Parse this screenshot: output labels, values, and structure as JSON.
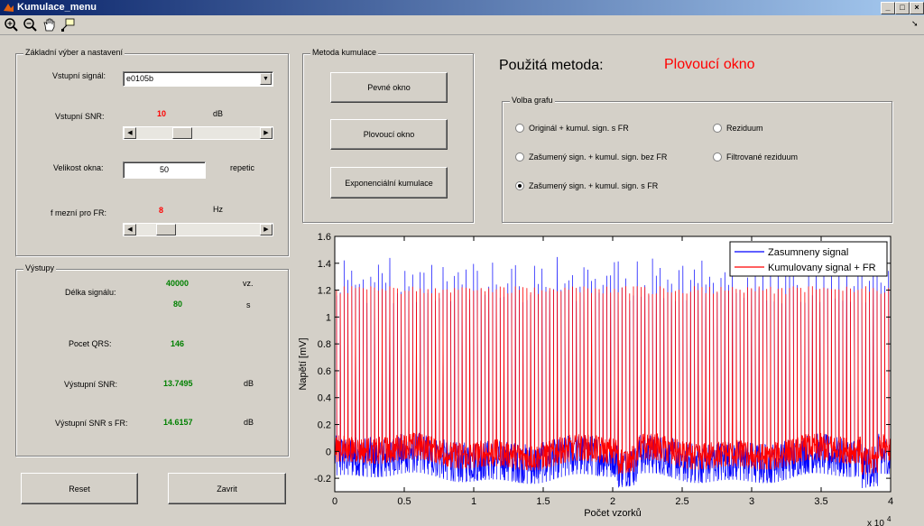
{
  "window": {
    "title": "Kumulace_menu",
    "minimize": "_",
    "maximize": "□",
    "close": "×"
  },
  "toolbar": {
    "icons": [
      "zoom-in-icon",
      "zoom-out-icon",
      "pan-hand-icon",
      "data-cursor-icon"
    ],
    "dock_arrow": "➘"
  },
  "settings": {
    "group_title": "Základní výber a nastavení",
    "input_signal_label": "Vstupní signál:",
    "input_signal_value": "e0105b",
    "snr_label": "Vstupní SNR:",
    "snr_value": "10",
    "snr_unit": "dB",
    "snr_slider_fraction": 0.35,
    "window_label": "Velikost okna:",
    "window_value": "50",
    "window_unit": "repetic",
    "cutoff_label": "f mezní pro FR:",
    "cutoff_value": "8",
    "cutoff_unit": "Hz",
    "cutoff_slider_fraction": 0.2
  },
  "outputs": {
    "group_title": "Výstupy",
    "length_label": "Délka signálu:",
    "length_samples": "40000",
    "length_samples_unit": "vz.",
    "length_seconds": "80",
    "length_seconds_unit": "s",
    "qrs_label": "Pocet QRS:",
    "qrs_value": "146",
    "snr_out_label": "Výstupní SNR:",
    "snr_out_value": "13.7495",
    "snr_out_unit": "dB",
    "snr_fr_label": "Výstupní SNR s FR:",
    "snr_fr_value": "14.6157",
    "snr_fr_unit": "dB"
  },
  "method": {
    "group_title": "Metoda kumulace",
    "btn_fixed": "Pevné okno",
    "btn_floating": "Plovoucí okno",
    "btn_exponential": "Exponenciální kumulace",
    "used_label": "Použitá metoda:",
    "used_value": "Plovoucí okno"
  },
  "graph_choice": {
    "group_title": "Volba grafu",
    "options": [
      {
        "label": "Originál + kumul. sign. s FR",
        "selected": false
      },
      {
        "label": "Zašumený sign. + kumul. sign. bez FR",
        "selected": false
      },
      {
        "label": "Zašumený sign. + kumul. sign. s FR",
        "selected": true
      },
      {
        "label": "Reziduum",
        "selected": false
      },
      {
        "label": "Filtrované reziduum",
        "selected": false
      }
    ]
  },
  "buttons": {
    "reset": "Reset",
    "close": "Zavrit"
  },
  "chart_data": {
    "type": "line",
    "xlabel": "Počet vzorků",
    "ylabel": "Napětí [mV]",
    "x_exponent_label": "x 10",
    "x_exponent": "4",
    "xlim": [
      0,
      40000
    ],
    "ylim": [
      -0.3,
      1.6
    ],
    "xticks": [
      "0",
      "0.5",
      "1",
      "1.5",
      "2",
      "2.5",
      "3",
      "3.5",
      "4"
    ],
    "xtick_values": [
      0,
      5000,
      10000,
      15000,
      20000,
      25000,
      30000,
      35000,
      40000
    ],
    "yticks": [
      "-0.2",
      "0",
      "0.2",
      "0.4",
      "0.6",
      "0.8",
      "1",
      "1.2",
      "1.4",
      "1.6"
    ],
    "ytick_values": [
      -0.2,
      0,
      0.2,
      0.4,
      0.6,
      0.8,
      1.0,
      1.2,
      1.4,
      1.6
    ],
    "legend_position": "top-right",
    "series": [
      {
        "name": "Zasumneny signal",
        "color": "#0000ff",
        "baseline_band": [
          -0.2,
          0.1
        ],
        "spike_peak_range": [
          1.1,
          1.45
        ],
        "spike_count": 146
      },
      {
        "name": "Kumulovany signal + FR",
        "color": "#ff0000",
        "baseline_band": [
          -0.1,
          0.1
        ],
        "spike_peak_range": [
          1.15,
          1.25
        ],
        "spike_count": 146
      }
    ]
  }
}
